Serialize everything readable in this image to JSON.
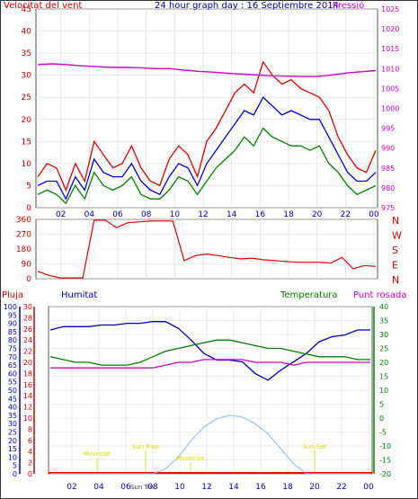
{
  "chart_data": [
    {
      "type": "line",
      "title": "24 hour graph day : 16 Septiembre 2014",
      "left_label": "Velocitat del vent",
      "right_label": "Pressió",
      "x_ticks": [
        "02",
        "04",
        "06",
        "08",
        "10",
        "12",
        "14",
        "16",
        "18",
        "20",
        "22",
        "00"
      ],
      "y_left_ticks": [
        "0",
        "5",
        "10",
        "15",
        "20",
        "25",
        "30",
        "35",
        "40",
        "45"
      ],
      "y_right_ticks": [
        "975",
        "980",
        "985",
        "990",
        "995",
        "1000",
        "1005",
        "1010",
        "1015",
        "1020",
        "1025"
      ],
      "ylim_left": [
        0,
        45
      ],
      "ylim_right": [
        975,
        1025
      ],
      "series": [
        {
          "axis": "left",
          "color": "#e00000",
          "kind": "gust",
          "values": [
            7,
            10,
            9,
            4,
            10,
            6,
            15,
            12,
            9,
            10,
            14,
            9,
            6,
            5,
            11,
            14,
            12,
            7,
            15,
            18,
            22,
            26,
            28,
            26,
            33,
            30,
            28,
            29,
            27,
            26,
            25,
            22,
            16,
            12,
            9,
            8,
            13
          ]
        },
        {
          "axis": "left",
          "color": "#0000e0",
          "kind": "avg",
          "values": [
            5,
            6,
            6,
            2,
            7,
            4,
            11,
            8,
            7,
            7,
            10,
            6,
            4,
            3,
            7,
            10,
            9,
            5,
            10,
            13,
            16,
            19,
            22,
            21,
            25,
            23,
            21,
            22,
            21,
            20,
            20,
            16,
            12,
            8,
            6,
            6,
            8
          ]
        },
        {
          "axis": "left",
          "color": "#008000",
          "kind": "low",
          "values": [
            3,
            4,
            3,
            1,
            5,
            2,
            8,
            5,
            4,
            5,
            7,
            3,
            2,
            2,
            4,
            7,
            6,
            3,
            6,
            9,
            11,
            13,
            16,
            14,
            18,
            16,
            15,
            14,
            14,
            13,
            14,
            10,
            8,
            5,
            3,
            4,
            5
          ]
        },
        {
          "axis": "right",
          "color": "#cc00cc",
          "kind": "pressure",
          "values": [
            1011,
            1011.2,
            1011,
            1010.7,
            1010.5,
            1010.3,
            1010.3,
            1010.2,
            1010,
            1010,
            1009.6,
            1009.3,
            1009.1,
            1008.8,
            1008.6,
            1008.4,
            1008.2,
            1008.1,
            1008,
            1008,
            1008.4,
            1008.9,
            1009.2,
            1009.5
          ]
        }
      ]
    },
    {
      "type": "line",
      "title": "",
      "y_ticks": [
        "0",
        "90",
        "180",
        "270",
        "360"
      ],
      "y_right_labels": [
        "N",
        "W",
        "S",
        "E",
        "N"
      ],
      "ylim": [
        0,
        360
      ],
      "x_ticks": [
        "02",
        "04",
        "06",
        "08",
        "10",
        "12",
        "14",
        "16",
        "18",
        "20",
        "22",
        "00"
      ],
      "series": [
        {
          "color": "#e00000",
          "values": [
            45,
            20,
            5,
            5,
            5,
            355,
            355,
            310,
            340,
            345,
            350,
            350,
            350,
            110,
            140,
            150,
            140,
            130,
            120,
            125,
            115,
            110,
            105,
            100,
            100,
            100,
            95,
            130,
            60,
            80,
            75
          ]
        }
      ]
    },
    {
      "type": "line",
      "labels": {
        "rain": "Pluja",
        "humidity": "Humitat",
        "temperature": "Temperatura",
        "dewpoint": "Punt rosada"
      },
      "y_rain_ticks": [
        "0",
        "2",
        "4",
        "6",
        "8",
        "10",
        "12",
        "14",
        "16",
        "18",
        "20",
        "22",
        "24",
        "26",
        "28",
        "30"
      ],
      "y_hum_ticks": [
        "0",
        "5",
        "10",
        "15",
        "20",
        "25",
        "30",
        "35",
        "40",
        "45",
        "50",
        "55",
        "60",
        "65",
        "70",
        "75",
        "80",
        "85",
        "90",
        "95",
        "100"
      ],
      "y_temp_ticks": [
        "-20",
        "-15",
        "-10",
        "-5",
        "0",
        "5",
        "10",
        "15",
        "20",
        "25",
        "30",
        "35",
        "40"
      ],
      "ylim_humidity": [
        0,
        100
      ],
      "ylim_temperature": [
        -20,
        40
      ],
      "x_ticks": [
        "02",
        "04",
        "06",
        "08",
        "10",
        "12",
        "14",
        "16",
        "18",
        "20",
        "22",
        "00"
      ],
      "sun_labels": {
        "sunrise": "Sun Rise",
        "sunset": "Sun Set",
        "moonrise": "Moonrise",
        "moonset": "Moonset",
        "moontrans": "Sun Trn"
      },
      "series": [
        {
          "name": "Humitat",
          "color": "#0000c0",
          "values": [
            86,
            88,
            88,
            88,
            89,
            89,
            90,
            90,
            91,
            91,
            87,
            80,
            72,
            68,
            68,
            67,
            60,
            56,
            62,
            67,
            72,
            79,
            82,
            83,
            86,
            86
          ]
        },
        {
          "name": "Temperatura",
          "color": "#008000",
          "values": [
            22,
            21,
            20,
            20,
            19,
            19,
            19,
            20,
            22,
            24,
            25,
            26,
            27,
            28,
            28,
            27,
            26,
            25,
            25,
            24,
            23,
            22,
            22,
            22,
            21,
            21
          ]
        },
        {
          "name": "Punt rosada",
          "color": "#cc00cc",
          "values": [
            18,
            18,
            18,
            18,
            18,
            18,
            18,
            18,
            18,
            19,
            20,
            20,
            21,
            21,
            21,
            21,
            20,
            20,
            20,
            19,
            20,
            20,
            20,
            20,
            20,
            20
          ]
        },
        {
          "name": "Solar",
          "color": "#88bbee",
          "values": [
            0,
            0,
            0,
            0,
            0,
            0,
            0,
            0,
            0,
            3,
            10,
            20,
            28,
            33,
            35,
            34,
            30,
            24,
            15,
            6,
            0,
            0,
            0,
            0,
            0,
            0
          ]
        }
      ]
    }
  ]
}
